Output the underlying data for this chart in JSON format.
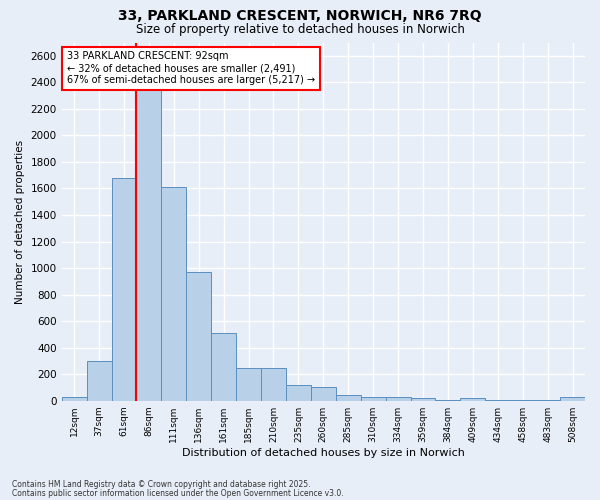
{
  "title": "33, PARKLAND CRESCENT, NORWICH, NR6 7RQ",
  "subtitle": "Size of property relative to detached houses in Norwich",
  "xlabel": "Distribution of detached houses by size in Norwich",
  "ylabel": "Number of detached properties",
  "categories": [
    "12sqm",
    "37sqm",
    "61sqm",
    "86sqm",
    "111sqm",
    "136sqm",
    "161sqm",
    "185sqm",
    "210sqm",
    "235sqm",
    "260sqm",
    "285sqm",
    "310sqm",
    "334sqm",
    "359sqm",
    "384sqm",
    "409sqm",
    "434sqm",
    "458sqm",
    "483sqm",
    "508sqm"
  ],
  "values": [
    25,
    300,
    1680,
    2491,
    1610,
    970,
    510,
    245,
    245,
    120,
    100,
    40,
    30,
    25,
    20,
    5,
    20,
    5,
    5,
    5,
    25
  ],
  "bar_color": "#b8d0e8",
  "bar_edge_color": "#5a8fc0",
  "background_color": "#e8eef8",
  "grid_color": "#ffffff",
  "redline_index": 3,
  "annotation_title": "33 PARKLAND CRESCENT: 92sqm",
  "annotation_line1": "← 32% of detached houses are smaller (2,491)",
  "annotation_line2": "67% of semi-detached houses are larger (5,217) →",
  "footnote1": "Contains HM Land Registry data © Crown copyright and database right 2025.",
  "footnote2": "Contains public sector information licensed under the Open Government Licence v3.0.",
  "ylim": [
    0,
    2700
  ],
  "yticks": [
    0,
    200,
    400,
    600,
    800,
    1000,
    1200,
    1400,
    1600,
    1800,
    2000,
    2200,
    2400,
    2600
  ]
}
